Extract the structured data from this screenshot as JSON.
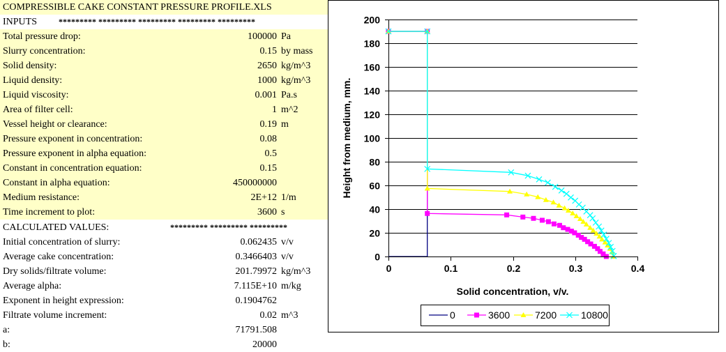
{
  "title": "COMPRESSIBLE CAKE CONSTANT PRESSURE PROFILE.XLS",
  "inputs_header": "INPUTS",
  "stars": "*********  *********  *********  *********  *********",
  "inputs": [
    {
      "label": "Total pressure drop:",
      "value": "100000",
      "unit": "Pa"
    },
    {
      "label": "Slurry concentration:",
      "value": "0.15",
      "unit": "by mass"
    },
    {
      "label": "Solid density:",
      "value": "2650",
      "unit": "kg/m^3"
    },
    {
      "label": "Liquid density:",
      "value": "1000",
      "unit": "kg/m^3"
    },
    {
      "label": "Liquid viscosity:",
      "value": "0.001",
      "unit": "Pa.s"
    },
    {
      "label": "Area of filter cell:",
      "value": "1",
      "unit": "m^2"
    },
    {
      "label": "Vessel height or clearance:",
      "value": "0.19",
      "unit": "m"
    },
    {
      "label": "Pressure exponent in concentration:",
      "value": "0.08",
      "unit": ""
    },
    {
      "label": "Pressure exponent in alpha equation:",
      "value": "0.5",
      "unit": ""
    },
    {
      "label": "Constant in concentration equation:",
      "value": "0.15",
      "unit": ""
    },
    {
      "label": "Constant in alpha equation:",
      "value": "450000000",
      "unit": ""
    },
    {
      "label": "Medium resistance:",
      "value": "2E+12",
      "unit": "1/m"
    },
    {
      "label": "Time increment to plot:",
      "value": "3600",
      "unit": "s"
    }
  ],
  "calc_header": "CALCULATED VALUES:",
  "calc_stars": "*********  *********  *********",
  "calculated": [
    {
      "label": "Initial concentration of slurry:",
      "value": "0.062435",
      "unit": "v/v"
    },
    {
      "label": "Average cake concentration:",
      "value": "0.3466403",
      "unit": "v/v"
    },
    {
      "label": "Dry solids/filtrate volume:",
      "value": "201.79972",
      "unit": "kg/m^3"
    },
    {
      "label": "Average alpha:",
      "value": "7.115E+10",
      "unit": "m/kg"
    },
    {
      "label": "Exponent in height expression:",
      "value": "0.1904762",
      "unit": ""
    },
    {
      "label": "Filtrate volume increment:",
      "value": "0.02",
      "unit": "m^3"
    },
    {
      "label": "a:",
      "value": "71791.508",
      "unit": ""
    },
    {
      "label": "b:",
      "value": "20000",
      "unit": ""
    }
  ],
  "chart_data": {
    "type": "line",
    "xlabel": "Solid concentration, v/v.",
    "ylabel": "Height from medium, mm.",
    "xlim": [
      0,
      0.4
    ],
    "ylim": [
      0,
      200
    ],
    "xticks": [
      "0",
      "0.1",
      "0.2",
      "0.3",
      "0.4"
    ],
    "yticks": [
      "0",
      "20",
      "40",
      "60",
      "80",
      "100",
      "120",
      "140",
      "160",
      "180",
      "200"
    ],
    "grid": "horizontal",
    "legend": "bottom",
    "series": [
      {
        "name": "0",
        "color": "#000080",
        "marker": "none",
        "points": [
          [
            0,
            190
          ],
          [
            0.0624,
            190
          ],
          [
            0.0624,
            0
          ],
          [
            0,
            0
          ]
        ]
      },
      {
        "name": "3600",
        "color": "#ff00ff",
        "marker": "square",
        "points": [
          [
            0,
            190
          ],
          [
            0.0624,
            190
          ],
          [
            0.0624,
            36.3
          ],
          [
            0.19,
            35.1
          ],
          [
            0.216,
            33.3
          ],
          [
            0.233,
            32.2
          ],
          [
            0.247,
            30.6
          ],
          [
            0.257,
            29.4
          ],
          [
            0.266,
            27.5
          ],
          [
            0.275,
            26.3
          ],
          [
            0.281,
            24.3
          ],
          [
            0.288,
            22.9
          ],
          [
            0.294,
            21.4
          ],
          [
            0.299,
            20
          ],
          [
            0.305,
            18
          ],
          [
            0.31,
            16.1
          ],
          [
            0.315,
            14.5
          ],
          [
            0.32,
            12.5
          ],
          [
            0.325,
            10.6
          ],
          [
            0.331,
            8.6
          ],
          [
            0.336,
            6.6
          ],
          [
            0.34,
            4.3
          ],
          [
            0.345,
            2.2
          ],
          [
            0.35,
            0
          ]
        ]
      },
      {
        "name": "7200",
        "color": "#ffff00",
        "marker": "triangle",
        "points": [
          [
            0,
            190
          ],
          [
            0.0624,
            190
          ],
          [
            0.0624,
            57.4
          ],
          [
            0.195,
            54.9
          ],
          [
            0.222,
            52.5
          ],
          [
            0.24,
            50.2
          ],
          [
            0.253,
            47.8
          ],
          [
            0.265,
            45.7
          ],
          [
            0.274,
            43.1
          ],
          [
            0.283,
            40.8
          ],
          [
            0.289,
            38.8
          ],
          [
            0.296,
            36.5
          ],
          [
            0.302,
            34.1
          ],
          [
            0.308,
            31.8
          ],
          [
            0.313,
            29.4
          ],
          [
            0.318,
            27.1
          ],
          [
            0.324,
            24.3
          ],
          [
            0.329,
            22
          ],
          [
            0.334,
            19.4
          ],
          [
            0.339,
            16.9
          ],
          [
            0.343,
            14.5
          ],
          [
            0.348,
            12
          ],
          [
            0.352,
            9.4
          ],
          [
            0.356,
            6.6
          ],
          [
            0.359,
            3.7
          ],
          [
            0.361,
            0
          ]
        ]
      },
      {
        "name": "10800",
        "color": "#00ffff",
        "marker": "x",
        "points": [
          [
            0,
            190
          ],
          [
            0.0624,
            190
          ],
          [
            0.0624,
            73.9
          ],
          [
            0.197,
            71.0
          ],
          [
            0.224,
            68.2
          ],
          [
            0.242,
            65.1
          ],
          [
            0.256,
            62.4
          ],
          [
            0.268,
            58.8
          ],
          [
            0.278,
            55.7
          ],
          [
            0.286,
            52.9
          ],
          [
            0.293,
            49.8
          ],
          [
            0.3,
            47.1
          ],
          [
            0.306,
            43.9
          ],
          [
            0.312,
            41.2
          ],
          [
            0.318,
            38
          ],
          [
            0.324,
            34.9
          ],
          [
            0.328,
            32.2
          ],
          [
            0.333,
            28.6
          ],
          [
            0.338,
            25.3
          ],
          [
            0.342,
            21.9
          ],
          [
            0.346,
            18.4
          ],
          [
            0.35,
            14.9
          ],
          [
            0.354,
            11.4
          ],
          [
            0.357,
            8.1
          ],
          [
            0.36,
            4.7
          ],
          [
            0.362,
            0.4
          ]
        ]
      }
    ]
  }
}
